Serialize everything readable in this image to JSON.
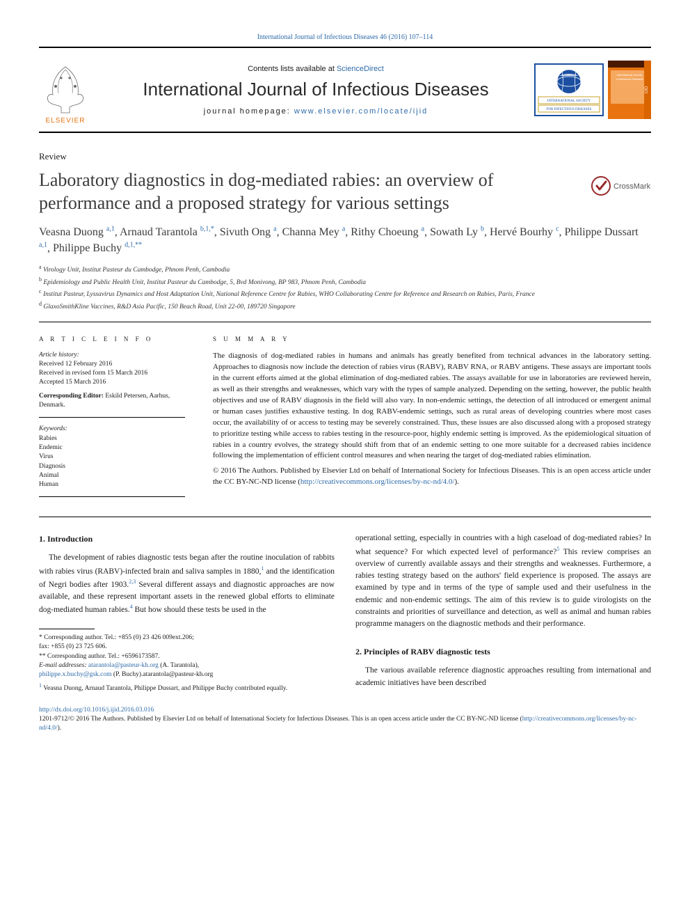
{
  "top_citation": "International Journal of Infectious Diseases 46 (2016) 107–114",
  "header": {
    "contents_prefix": "Contents lists available at ",
    "contents_link": "ScienceDirect",
    "journal_title": "International Journal of Infectious Diseases",
    "homepage_prefix": "journal homepage: ",
    "homepage_url": "www.elsevier.com/locate/ijid",
    "elsevier": "ELSEVIER",
    "society_text1": "INTERNATIONAL SOCIETY",
    "society_text2": "FOR INFECTIOUS DISEASES",
    "crossmark": "CrossMark"
  },
  "article_type": "Review",
  "title": "Laboratory diagnostics in dog-mediated rabies: an overview of performance and a proposed strategy for various settings",
  "authors_html": "Veasna Duong <sup class=\"alink\">a,1</sup>, Arnaud Tarantola <sup class=\"alink\">b,1,*</sup>, Sivuth Ong <sup class=\"alink\">a</sup>, Channa Mey <sup class=\"alink\">a</sup>, Rithy Choeung <sup class=\"alink\">a</sup>, Sowath Ly <sup class=\"alink\">b</sup>, Hervé Bourhy <sup class=\"alink\">c</sup>, Philippe Dussart <sup class=\"alink\">a,1</sup>, Philippe Buchy <sup class=\"alink\">d,1,**</sup>",
  "affiliations": {
    "a": "Virology Unit, Institut Pasteur du Cambodge, Phnom Penh, Cambodia",
    "b": "Epidemiology and Public Health Unit, Institut Pasteur du Cambodge, 5, Bvd Monivong, BP 983, Phnom Penh, Cambodia",
    "c": "Institut Pasteur, Lyssavirus Dynamics and Host Adaptation Unit, National Reference Centre for Rabies, WHO Collaborating Centre for Reference and Research on Rabies, Paris, France",
    "d": "GlaxoSmithKline Vaccines, R&D Asia Pacific, 150 Beach Road, Unit 22-00, 189720 Singapore"
  },
  "article_info": {
    "heading": "A R T I C L E   I N F O",
    "history_label": "Article history:",
    "received": "Received 12 February 2016",
    "revised": "Received in revised form 15 March 2016",
    "accepted": "Accepted 15 March 2016",
    "editor_label": "Corresponding Editor:",
    "editor": "Eskild Petersen, Aarhus, Denmark.",
    "keywords_label": "Keywords:",
    "keywords": [
      "Rabies",
      "Endemic",
      "Virus",
      "Diagnosis",
      "Animal",
      "Human"
    ]
  },
  "summary_heading": "S U M M A R Y",
  "summary": "The diagnosis of dog-mediated rabies in humans and animals has greatly benefited from technical advances in the laboratory setting. Approaches to diagnosis now include the detection of rabies virus (RABV), RABV RNA, or RABV antigens. These assays are important tools in the current efforts aimed at the global elimination of dog-mediated rabies. The assays available for use in laboratories are reviewed herein, as well as their strengths and weaknesses, which vary with the types of sample analyzed. Depending on the setting, however, the public health objectives and use of RABV diagnosis in the field will also vary. In non-endemic settings, the detection of all introduced or emergent animal or human cases justifies exhaustive testing. In dog RABV-endemic settings, such as rural areas of developing countries where most cases occur, the availability of or access to testing may be severely constrained. Thus, these issues are also discussed along with a proposed strategy to prioritize testing while access to rabies testing in the resource-poor, highly endemic setting is improved. As the epidemiological situation of rabies in a country evolves, the strategy should shift from that of an endemic setting to one more suitable for a decreased rabies incidence following the implementation of efficient control measures and when nearing the target of dog-mediated rabies elimination.",
  "copyright": "© 2016 The Authors. Published by Elsevier Ltd on behalf of International Society for Infectious Diseases. This is an open access article under the CC BY-NC-ND license (",
  "cc_url": "http://creativecommons.org/licenses/by-nc-nd/4.0/",
  "copyright_close": ").",
  "sections": {
    "intro_head": "1. Introduction",
    "intro_p1": "The development of rabies diagnostic tests began after the routine inoculation of rabbits with rabies virus (RABV)-infected brain and saliva samples in 1880,",
    "intro_ref1": "1",
    "intro_p1b": " and the identification of Negri bodies after 1903.",
    "intro_ref23": "2,3",
    "intro_p1c": " Several different assays and diagnostic approaches are now available, and these represent important assets in the renewed global efforts to eliminate dog-mediated human rabies.",
    "intro_ref4": "4",
    "intro_p1d": " But how should these tests be used in the",
    "col2_p1a": "operational setting, especially in countries with a high caseload of dog-mediated rabies? In what sequence? For which expected level of performance?",
    "col2_ref5": "5",
    "col2_p1b": " This review comprises an overview of currently available assays and their strengths and weaknesses. Furthermore, a rabies testing strategy based on the authors' field experience is proposed. The assays are examined by type and in terms of the type of sample used and their usefulness in the endemic and non-endemic settings. The aim of this review is to guide virologists on the constraints and priorities of surveillance and detection, as well as animal and human rabies programme managers on the diagnostic methods and their performance.",
    "sec2_head": "2. Principles of RABV diagnostic tests",
    "sec2_p1": "The various available reference diagnostic approaches resulting from international and academic initiatives have been described"
  },
  "footnotes": {
    "corr1": "* Corresponding author. Tel.: +855 (0) 23 426 009ext.206;",
    "corr1_fax": "fax: +855 (0) 23 725 606.",
    "corr2": "** Corresponding author. Tel.: +6596173587.",
    "email_label": "E-mail addresses:",
    "email1": "atarantola@pasteur-kh.org",
    "email1_who": " (A. Tarantola),",
    "email2": "philippe.x.buchy@gsk.com",
    "email2_who": " (P. Buchy).atarantola@pasteur-kh.org",
    "note1": "Veasna Duong, Arnaud Tarantola, Philippe Dussart, and Philippe Buchy contributed equally."
  },
  "footer": {
    "doi": "http://dx.doi.org/10.1016/j.ijid.2016.03.016",
    "issn_line": "1201-9712/© 2016 The Authors. Published by Elsevier Ltd on behalf of International Society for Infectious Diseases. This is an open access article under the CC BY-NC-ND license (",
    "cc_url": "http://creativecommons.org/licenses/by-nc-nd/4.0/",
    "close": ")."
  },
  "colors": {
    "link": "#2e6aa8",
    "elsevier_orange": "#e8730f",
    "society_blue": "#1c4fa1",
    "society_gold": "#c9a227",
    "cover_orange": "#e8730f"
  }
}
